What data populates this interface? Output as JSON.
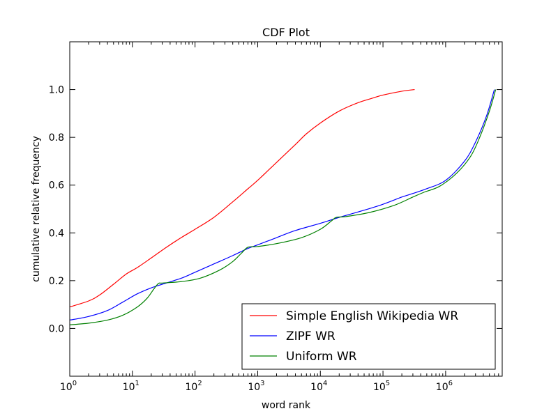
{
  "chart_data": {
    "type": "line",
    "title": "CDF Plot",
    "xlabel": "word rank",
    "ylabel": "cumulative relative frequency",
    "x_scale": "log",
    "xlim": [
      1,
      8000000
    ],
    "ylim": [
      -0.2,
      1.2
    ],
    "x_ticks": [
      {
        "value": 1,
        "base": "10",
        "exp": "0"
      },
      {
        "value": 10,
        "base": "10",
        "exp": "1"
      },
      {
        "value": 100,
        "base": "10",
        "exp": "2"
      },
      {
        "value": 1000,
        "base": "10",
        "exp": "3"
      },
      {
        "value": 10000,
        "base": "10",
        "exp": "4"
      },
      {
        "value": 100000,
        "base": "10",
        "exp": "5"
      },
      {
        "value": 1000000,
        "base": "10",
        "exp": "6"
      }
    ],
    "y_ticks": [
      {
        "value": 0.0,
        "label": "0.0"
      },
      {
        "value": 0.2,
        "label": "0.2"
      },
      {
        "value": 0.4,
        "label": "0.4"
      },
      {
        "value": 0.6,
        "label": "0.6"
      },
      {
        "value": 0.8,
        "label": "0.8"
      },
      {
        "value": 1.0,
        "label": "1.0"
      }
    ],
    "grid": false,
    "legend_position": "bottom-right",
    "series": [
      {
        "name": "Simple English Wikipedia WR",
        "color": "#ff0000",
        "points": [
          [
            1,
            0.09
          ],
          [
            2,
            0.115
          ],
          [
            3,
            0.14
          ],
          [
            5,
            0.185
          ],
          [
            8,
            0.228
          ],
          [
            12,
            0.255
          ],
          [
            20,
            0.295
          ],
          [
            35,
            0.34
          ],
          [
            60,
            0.38
          ],
          [
            100,
            0.415
          ],
          [
            200,
            0.465
          ],
          [
            400,
            0.53
          ],
          [
            700,
            0.585
          ],
          [
            1000,
            0.62
          ],
          [
            2000,
            0.695
          ],
          [
            4000,
            0.77
          ],
          [
            6000,
            0.815
          ],
          [
            10000,
            0.86
          ],
          [
            20000,
            0.91
          ],
          [
            40000,
            0.945
          ],
          [
            70000,
            0.965
          ],
          [
            100000,
            0.977
          ],
          [
            200000,
            0.993
          ],
          [
            320000,
            1.0
          ]
        ]
      },
      {
        "name": "ZIPF WR",
        "color": "#0000ff",
        "points": [
          [
            1,
            0.035
          ],
          [
            2,
            0.05
          ],
          [
            4,
            0.075
          ],
          [
            7,
            0.11
          ],
          [
            12,
            0.145
          ],
          [
            20,
            0.17
          ],
          [
            30,
            0.185
          ],
          [
            60,
            0.21
          ],
          [
            100,
            0.235
          ],
          [
            200,
            0.27
          ],
          [
            400,
            0.305
          ],
          [
            700,
            0.335
          ],
          [
            1000,
            0.35
          ],
          [
            2000,
            0.38
          ],
          [
            4000,
            0.41
          ],
          [
            10000,
            0.44
          ],
          [
            20000,
            0.465
          ],
          [
            50000,
            0.495
          ],
          [
            100000,
            0.52
          ],
          [
            200000,
            0.55
          ],
          [
            300000,
            0.565
          ],
          [
            500000,
            0.585
          ],
          [
            1000000,
            0.62
          ],
          [
            2000000,
            0.7
          ],
          [
            3000000,
            0.78
          ],
          [
            4500000,
            0.89
          ],
          [
            6000000,
            1.0
          ]
        ]
      },
      {
        "name": "Uniform WR",
        "color": "#008000",
        "points": [
          [
            1,
            0.015
          ],
          [
            2,
            0.022
          ],
          [
            4,
            0.035
          ],
          [
            7,
            0.055
          ],
          [
            12,
            0.09
          ],
          [
            17,
            0.125
          ],
          [
            22,
            0.165
          ],
          [
            26,
            0.188
          ],
          [
            30,
            0.19
          ],
          [
            60,
            0.196
          ],
          [
            120,
            0.21
          ],
          [
            250,
            0.245
          ],
          [
            400,
            0.28
          ],
          [
            550,
            0.315
          ],
          [
            700,
            0.34
          ],
          [
            1000,
            0.343
          ],
          [
            2000,
            0.355
          ],
          [
            5000,
            0.38
          ],
          [
            10000,
            0.415
          ],
          [
            15000,
            0.45
          ],
          [
            18000,
            0.465
          ],
          [
            25000,
            0.468
          ],
          [
            60000,
            0.485
          ],
          [
            150000,
            0.515
          ],
          [
            300000,
            0.55
          ],
          [
            450000,
            0.57
          ],
          [
            800000,
            0.595
          ],
          [
            1500000,
            0.65
          ],
          [
            2500000,
            0.72
          ],
          [
            3500000,
            0.8
          ],
          [
            5000000,
            0.91
          ],
          [
            6300000,
            1.0
          ]
        ]
      }
    ]
  }
}
